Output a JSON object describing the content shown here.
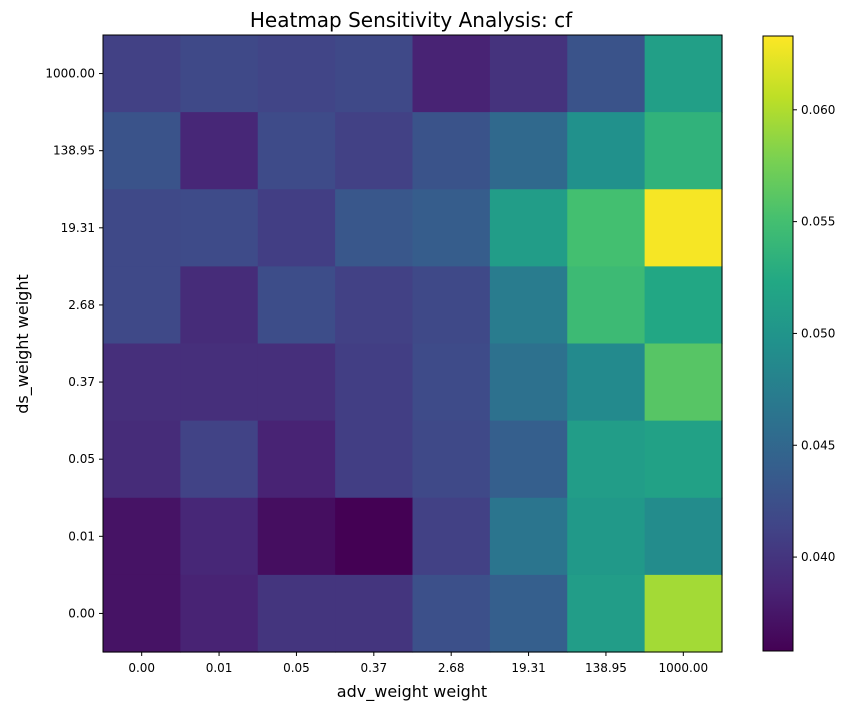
{
  "chart_data": {
    "type": "heatmap",
    "title": "Heatmap Sensitivity Analysis: cf",
    "xlabel": "adv_weight weight",
    "ylabel": "ds_weight weight",
    "x_categories": [
      "0.00",
      "0.01",
      "0.05",
      "0.37",
      "2.68",
      "19.31",
      "138.95",
      "1000.00"
    ],
    "y_categories": [
      "1000.00",
      "138.95",
      "19.31",
      "2.68",
      "0.37",
      "0.05",
      "0.01",
      "0.00"
    ],
    "values": [
      [
        0.041,
        0.0418,
        0.0414,
        0.0418,
        0.0385,
        0.0398,
        0.0428,
        0.0512
      ],
      [
        0.0428,
        0.0388,
        0.042,
        0.041,
        0.0428,
        0.0452,
        0.0495,
        0.0535
      ],
      [
        0.0418,
        0.042,
        0.0408,
        0.0432,
        0.0438,
        0.051,
        0.055,
        0.063
      ],
      [
        0.0418,
        0.0392,
        0.0422,
        0.041,
        0.0418,
        0.0472,
        0.0545,
        0.0522
      ],
      [
        0.0395,
        0.0395,
        0.0395,
        0.0408,
        0.042,
        0.046,
        0.0488,
        0.056
      ],
      [
        0.0392,
        0.0412,
        0.0385,
        0.0408,
        0.0418,
        0.044,
        0.051,
        0.0515
      ],
      [
        0.0372,
        0.0388,
        0.0368,
        0.0358,
        0.041,
        0.0465,
        0.0505,
        0.049
      ],
      [
        0.0372,
        0.0385,
        0.04,
        0.04,
        0.0425,
        0.044,
        0.051,
        0.0595
      ]
    ],
    "zlim": [
      0.0358,
      0.0633
    ],
    "colorbar_ticks": [
      "0.040",
      "0.045",
      "0.050",
      "0.055",
      "0.060"
    ],
    "colorbar_tick_values": [
      0.04,
      0.045,
      0.05,
      0.055,
      0.06
    ],
    "colormap": "viridis",
    "grid": false
  }
}
